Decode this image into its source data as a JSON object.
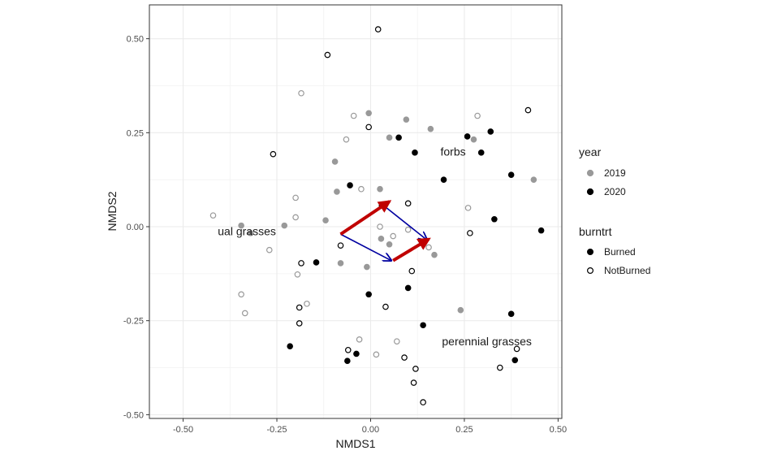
{
  "chart_data": {
    "type": "scatter",
    "title": "",
    "xlabel": "NMDS1",
    "ylabel": "NMDS2",
    "xlim": [
      -0.59,
      0.51
    ],
    "ylim": [
      -0.51,
      0.59
    ],
    "x_ticks": [
      -0.5,
      -0.25,
      0,
      0.25,
      0.5
    ],
    "x_tick_labels": [
      "-0.50",
      "-0.25",
      "0.00",
      "0.25",
      "0.50"
    ],
    "y_ticks": [
      -0.5,
      -0.25,
      0,
      0.25,
      0.5
    ],
    "y_tick_labels": [
      "-0.50",
      "-0.25",
      "0.00",
      "0.25",
      "0.50"
    ],
    "grid": true,
    "legend_position": "right",
    "legend": {
      "year": {
        "title": "year",
        "entries": [
          {
            "label": "2019",
            "color": "#999999"
          },
          {
            "label": "2020",
            "color": "#000000"
          }
        ]
      },
      "burntrt": {
        "title": "burntrt",
        "entries": [
          {
            "label": "Burned",
            "filled": true
          },
          {
            "label": "NotBurned",
            "filled": false
          }
        ]
      }
    },
    "points": [
      {
        "x": 0.02,
        "y": 0.525,
        "year": "2020",
        "burntrt": "NotBurned"
      },
      {
        "x": -0.115,
        "y": 0.457,
        "year": "2020",
        "burntrt": "NotBurned"
      },
      {
        "x": -0.185,
        "y": 0.355,
        "year": "2019",
        "burntrt": "NotBurned"
      },
      {
        "x": -0.005,
        "y": 0.265,
        "year": "2020",
        "burntrt": "NotBurned"
      },
      {
        "x": -0.045,
        "y": 0.295,
        "year": "2019",
        "burntrt": "NotBurned"
      },
      {
        "x": -0.005,
        "y": 0.302,
        "year": "2019",
        "burntrt": "Burned"
      },
      {
        "x": 0.095,
        "y": 0.285,
        "year": "2019",
        "burntrt": "Burned"
      },
      {
        "x": 0.285,
        "y": 0.295,
        "year": "2019",
        "burntrt": "NotBurned"
      },
      {
        "x": 0.42,
        "y": 0.31,
        "year": "2020",
        "burntrt": "NotBurned"
      },
      {
        "x": 0.16,
        "y": 0.26,
        "year": "2019",
        "burntrt": "Burned"
      },
      {
        "x": 0.05,
        "y": 0.237,
        "year": "2019",
        "burntrt": "Burned"
      },
      {
        "x": 0.075,
        "y": 0.237,
        "year": "2020",
        "burntrt": "Burned"
      },
      {
        "x": 0.258,
        "y": 0.24,
        "year": "2020",
        "burntrt": "Burned"
      },
      {
        "x": 0.275,
        "y": 0.232,
        "year": "2019",
        "burntrt": "Burned"
      },
      {
        "x": 0.32,
        "y": 0.253,
        "year": "2020",
        "burntrt": "Burned"
      },
      {
        "x": -0.065,
        "y": 0.232,
        "year": "2019",
        "burntrt": "NotBurned"
      },
      {
        "x": -0.26,
        "y": 0.193,
        "year": "2020",
        "burntrt": "NotBurned"
      },
      {
        "x": 0.118,
        "y": 0.197,
        "year": "2020",
        "burntrt": "Burned"
      },
      {
        "x": 0.295,
        "y": 0.197,
        "year": "2020",
        "burntrt": "Burned"
      },
      {
        "x": -0.095,
        "y": 0.173,
        "year": "2019",
        "burntrt": "Burned"
      },
      {
        "x": 0.375,
        "y": 0.138,
        "year": "2020",
        "burntrt": "Burned"
      },
      {
        "x": 0.435,
        "y": 0.125,
        "year": "2019",
        "burntrt": "Burned"
      },
      {
        "x": 0.195,
        "y": 0.125,
        "year": "2020",
        "burntrt": "Burned"
      },
      {
        "x": -0.055,
        "y": 0.11,
        "year": "2020",
        "burntrt": "Burned"
      },
      {
        "x": -0.025,
        "y": 0.1,
        "year": "2019",
        "burntrt": "NotBurned"
      },
      {
        "x": 0.025,
        "y": 0.1,
        "year": "2019",
        "burntrt": "Burned"
      },
      {
        "x": -0.09,
        "y": 0.093,
        "year": "2019",
        "burntrt": "Burned"
      },
      {
        "x": -0.2,
        "y": 0.077,
        "year": "2019",
        "burntrt": "NotBurned"
      },
      {
        "x": 0.1,
        "y": 0.062,
        "year": "2020",
        "burntrt": "NotBurned"
      },
      {
        "x": 0.03,
        "y": 0.057,
        "year": "2020",
        "burntrt": "Burned"
      },
      {
        "x": 0.26,
        "y": 0.05,
        "year": "2019",
        "burntrt": "NotBurned"
      },
      {
        "x": -0.42,
        "y": 0.03,
        "year": "2019",
        "burntrt": "NotBurned"
      },
      {
        "x": -0.2,
        "y": 0.025,
        "year": "2019",
        "burntrt": "NotBurned"
      },
      {
        "x": -0.12,
        "y": 0.017,
        "year": "2019",
        "burntrt": "Burned"
      },
      {
        "x": 0.33,
        "y": 0.02,
        "year": "2020",
        "burntrt": "Burned"
      },
      {
        "x": -0.345,
        "y": 0.003,
        "year": "2019",
        "burntrt": "Burned"
      },
      {
        "x": -0.23,
        "y": 0.003,
        "year": "2019",
        "burntrt": "Burned"
      },
      {
        "x": 0.025,
        "y": 0.0,
        "year": "2019",
        "burntrt": "NotBurned"
      },
      {
        "x": 0.1,
        "y": -0.008,
        "year": "2019",
        "burntrt": "NotBurned"
      },
      {
        "x": -0.32,
        "y": -0.017,
        "year": "2019",
        "burntrt": "Burned"
      },
      {
        "x": 0.265,
        "y": -0.017,
        "year": "2020",
        "burntrt": "NotBurned"
      },
      {
        "x": 0.455,
        "y": -0.01,
        "year": "2020",
        "burntrt": "Burned"
      },
      {
        "x": 0.06,
        "y": -0.025,
        "year": "2019",
        "burntrt": "NotBurned"
      },
      {
        "x": 0.028,
        "y": -0.032,
        "year": "2019",
        "burntrt": "Burned"
      },
      {
        "x": 0.05,
        "y": -0.047,
        "year": "2019",
        "burntrt": "Burned"
      },
      {
        "x": -0.27,
        "y": -0.062,
        "year": "2019",
        "burntrt": "NotBurned"
      },
      {
        "x": -0.08,
        "y": -0.05,
        "year": "2020",
        "burntrt": "NotBurned"
      },
      {
        "x": 0.155,
        "y": -0.055,
        "year": "2019",
        "burntrt": "NotBurned"
      },
      {
        "x": 0.17,
        "y": -0.075,
        "year": "2019",
        "burntrt": "Burned"
      },
      {
        "x": -0.145,
        "y": -0.095,
        "year": "2020",
        "burntrt": "Burned"
      },
      {
        "x": -0.185,
        "y": -0.097,
        "year": "2020",
        "burntrt": "NotBurned"
      },
      {
        "x": -0.08,
        "y": -0.097,
        "year": "2019",
        "burntrt": "Burned"
      },
      {
        "x": -0.01,
        "y": -0.107,
        "year": "2019",
        "burntrt": "Burned"
      },
      {
        "x": 0.11,
        "y": -0.118,
        "year": "2020",
        "burntrt": "NotBurned"
      },
      {
        "x": -0.195,
        "y": -0.127,
        "year": "2019",
        "burntrt": "NotBurned"
      },
      {
        "x": 0.1,
        "y": -0.163,
        "year": "2020",
        "burntrt": "Burned"
      },
      {
        "x": -0.005,
        "y": -0.18,
        "year": "2020",
        "burntrt": "Burned"
      },
      {
        "x": -0.345,
        "y": -0.18,
        "year": "2019",
        "burntrt": "NotBurned"
      },
      {
        "x": -0.17,
        "y": -0.205,
        "year": "2019",
        "burntrt": "NotBurned"
      },
      {
        "x": -0.19,
        "y": -0.215,
        "year": "2020",
        "burntrt": "NotBurned"
      },
      {
        "x": 0.04,
        "y": -0.213,
        "year": "2020",
        "burntrt": "NotBurned"
      },
      {
        "x": -0.335,
        "y": -0.23,
        "year": "2019",
        "burntrt": "NotBurned"
      },
      {
        "x": 0.24,
        "y": -0.222,
        "year": "2019",
        "burntrt": "Burned"
      },
      {
        "x": 0.375,
        "y": -0.232,
        "year": "2020",
        "burntrt": "Burned"
      },
      {
        "x": -0.19,
        "y": -0.257,
        "year": "2020",
        "burntrt": "NotBurned"
      },
      {
        "x": 0.14,
        "y": -0.262,
        "year": "2020",
        "burntrt": "Burned"
      },
      {
        "x": -0.03,
        "y": -0.3,
        "year": "2019",
        "burntrt": "NotBurned"
      },
      {
        "x": 0.07,
        "y": -0.305,
        "year": "2019",
        "burntrt": "NotBurned"
      },
      {
        "x": -0.215,
        "y": -0.318,
        "year": "2020",
        "burntrt": "Burned"
      },
      {
        "x": -0.06,
        "y": -0.328,
        "year": "2020",
        "burntrt": "NotBurned"
      },
      {
        "x": 0.39,
        "y": -0.325,
        "year": "2020",
        "burntrt": "NotBurned"
      },
      {
        "x": -0.038,
        "y": -0.338,
        "year": "2020",
        "burntrt": "Burned"
      },
      {
        "x": 0.015,
        "y": -0.34,
        "year": "2019",
        "burntrt": "NotBurned"
      },
      {
        "x": 0.09,
        "y": -0.348,
        "year": "2020",
        "burntrt": "NotBurned"
      },
      {
        "x": -0.062,
        "y": -0.357,
        "year": "2020",
        "burntrt": "Burned"
      },
      {
        "x": 0.385,
        "y": -0.355,
        "year": "2020",
        "burntrt": "Burned"
      },
      {
        "x": 0.12,
        "y": -0.378,
        "year": "2020",
        "burntrt": "NotBurned"
      },
      {
        "x": 0.345,
        "y": -0.375,
        "year": "2020",
        "burntrt": "NotBurned"
      },
      {
        "x": 0.115,
        "y": -0.415,
        "year": "2020",
        "burntrt": "NotBurned"
      },
      {
        "x": 0.14,
        "y": -0.467,
        "year": "2020",
        "burntrt": "NotBurned"
      }
    ],
    "vectors": [
      {
        "name": "blue-1",
        "x0": -0.08,
        "y0": -0.02,
        "x1": 0.055,
        "y1": -0.09,
        "color": "#0000a0"
      },
      {
        "name": "blue-2",
        "x0": 0.03,
        "y0": 0.06,
        "x1": 0.15,
        "y1": -0.035,
        "color": "#0000a0"
      },
      {
        "name": "red-1",
        "x0": -0.08,
        "y0": -0.02,
        "x1": 0.05,
        "y1": 0.067,
        "color": "#c00000"
      },
      {
        "name": "red-2",
        "x0": 0.06,
        "y0": -0.09,
        "x1": 0.155,
        "y1": -0.033,
        "color": "#c00000"
      }
    ],
    "annotations": [
      {
        "text": "forbs",
        "x": 0.22,
        "y": 0.2,
        "anchor": "middle"
      },
      {
        "text": "ual grasses",
        "x": -0.33,
        "y": -0.012,
        "anchor": "middle"
      },
      {
        "text": "perennial grasses",
        "x": 0.31,
        "y": -0.305,
        "anchor": "middle"
      }
    ]
  }
}
